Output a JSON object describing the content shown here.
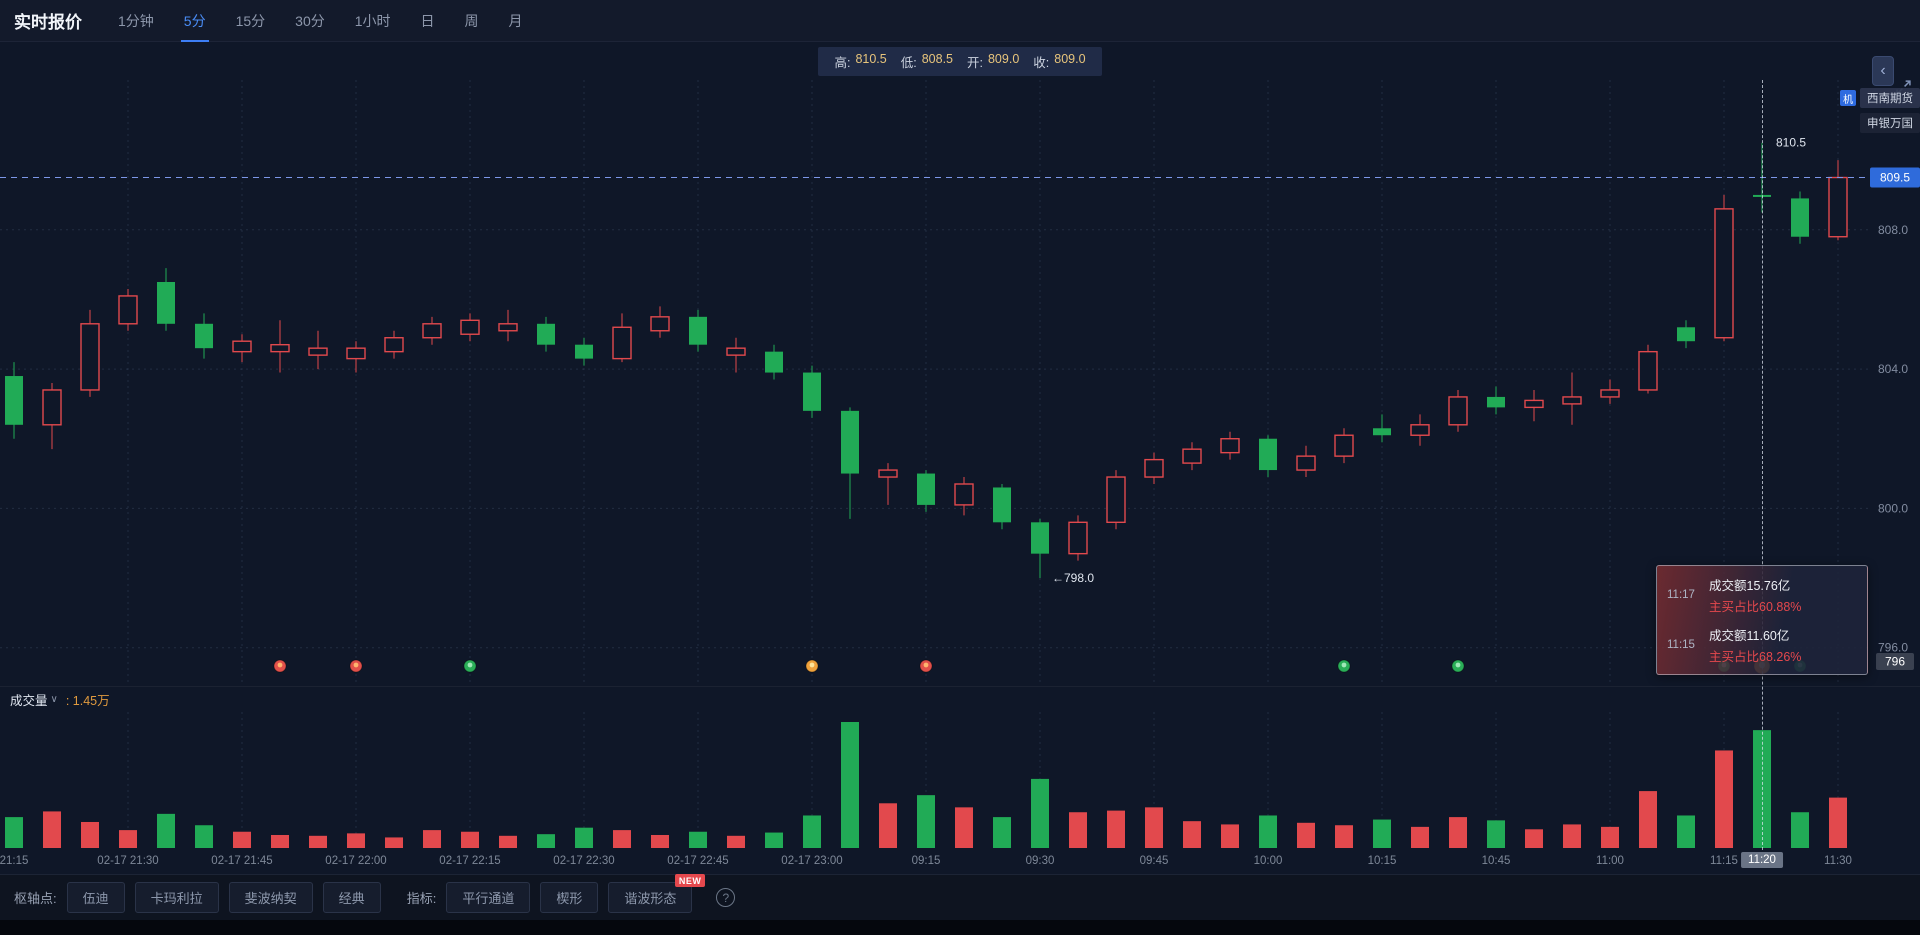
{
  "header": {
    "title": "实时报价",
    "tabs": [
      "1分钟",
      "5分",
      "15分",
      "30分",
      "1小时",
      "日",
      "周",
      "月"
    ],
    "active_tab": "5分"
  },
  "ohlc_bar": {
    "high_label": "高:",
    "high": "810.5",
    "low_label": "低:",
    "low": "808.5",
    "open_label": "开:",
    "open": "809.0",
    "close_label": "收:",
    "close": "809.0"
  },
  "side_controls": {
    "collapse_icon": "‹"
  },
  "overlay_tags": {
    "badge": "机",
    "item1": "西南期货",
    "item2": "申银万国"
  },
  "tooltip": {
    "rows": [
      {
        "time": "11:17",
        "amount": "成交额15.76亿",
        "ratio": "主买占比60.88%"
      },
      {
        "time": "11:15",
        "amount": "成交额11.60亿",
        "ratio": "主买占比68.26%"
      }
    ]
  },
  "volume_pane": {
    "label": "成交量",
    "caret": "∨",
    "value": ": 1.45万"
  },
  "footer": {
    "pivot_label": "枢轴点:",
    "pivot_buttons": [
      "伍迪",
      "卡玛利拉",
      "斐波纳契",
      "经典"
    ],
    "indicator_label": "指标:",
    "indicator_buttons": [
      "平行通道",
      "楔形",
      "谐波形态"
    ],
    "new_badge": "NEW",
    "help_icon": "?"
  },
  "chart_data": {
    "type": "candlestick",
    "timeframe": "5分",
    "convention": "red=up, green=down (CN futures)",
    "columns": [
      "time",
      "open",
      "high",
      "low",
      "close",
      "volume_wan"
    ],
    "candles": [
      [
        "21:15",
        803.8,
        804.2,
        802.0,
        802.4,
        0.38
      ],
      [
        "21:20",
        802.4,
        803.6,
        801.7,
        803.4,
        0.45
      ],
      [
        "21:25",
        803.4,
        805.7,
        803.2,
        805.3,
        0.32
      ],
      [
        "21:30",
        805.3,
        806.3,
        805.1,
        806.1,
        0.22
      ],
      [
        "21:35",
        806.5,
        806.9,
        805.1,
        805.3,
        0.42
      ],
      [
        "21:40",
        805.3,
        805.6,
        804.3,
        804.6,
        0.28
      ],
      [
        "21:45",
        804.5,
        805.0,
        804.2,
        804.8,
        0.2
      ],
      [
        "21:50",
        804.5,
        805.4,
        803.9,
        804.7,
        0.16
      ],
      [
        "21:55",
        804.4,
        805.1,
        804.0,
        804.6,
        0.15
      ],
      [
        "22:00",
        804.3,
        804.8,
        803.9,
        804.6,
        0.18
      ],
      [
        "22:05",
        804.5,
        805.1,
        804.3,
        804.9,
        0.13
      ],
      [
        "22:10",
        804.9,
        805.5,
        804.7,
        805.3,
        0.22
      ],
      [
        "22:15",
        805.0,
        805.6,
        804.8,
        805.4,
        0.2
      ],
      [
        "22:20",
        805.1,
        805.7,
        804.8,
        805.3,
        0.15
      ],
      [
        "22:25",
        805.3,
        805.5,
        804.5,
        804.7,
        0.17
      ],
      [
        "22:30",
        804.7,
        804.9,
        804.1,
        804.3,
        0.25
      ],
      [
        "22:35",
        804.3,
        805.6,
        804.2,
        805.2,
        0.22
      ],
      [
        "22:40",
        805.1,
        805.8,
        804.9,
        805.5,
        0.16
      ],
      [
        "22:45",
        805.5,
        805.7,
        804.5,
        804.7,
        0.2
      ],
      [
        "22:50",
        804.4,
        804.9,
        803.9,
        804.6,
        0.15
      ],
      [
        "22:55",
        804.5,
        804.7,
        803.7,
        803.9,
        0.19
      ],
      [
        "23:00",
        803.9,
        804.1,
        802.6,
        802.8,
        0.4
      ],
      [
        "09:05",
        802.8,
        802.9,
        799.7,
        801.0,
        1.55
      ],
      [
        "09:10",
        800.9,
        801.3,
        800.1,
        801.1,
        0.55
      ],
      [
        "09:15",
        801.0,
        801.1,
        799.9,
        800.1,
        0.65
      ],
      [
        "09:20",
        800.1,
        800.9,
        799.8,
        800.7,
        0.5
      ],
      [
        "09:25",
        800.6,
        800.7,
        799.4,
        799.6,
        0.38
      ],
      [
        "09:30",
        799.6,
        799.7,
        798.0,
        798.7,
        0.85
      ],
      [
        "09:35",
        798.7,
        799.8,
        798.5,
        799.6,
        0.44
      ],
      [
        "09:40",
        799.6,
        801.1,
        799.4,
        800.9,
        0.46
      ],
      [
        "09:45",
        800.9,
        801.6,
        800.7,
        801.4,
        0.5
      ],
      [
        "09:50",
        801.3,
        801.9,
        801.1,
        801.7,
        0.33
      ],
      [
        "09:55",
        801.6,
        802.2,
        801.4,
        802.0,
        0.29
      ],
      [
        "10:00",
        802.0,
        802.1,
        800.9,
        801.1,
        0.4
      ],
      [
        "10:05",
        801.1,
        801.8,
        800.9,
        801.5,
        0.31
      ],
      [
        "10:10",
        801.5,
        802.3,
        801.3,
        802.1,
        0.28
      ],
      [
        "10:15",
        802.3,
        802.7,
        801.9,
        802.1,
        0.35
      ],
      [
        "10:35",
        802.1,
        802.7,
        801.8,
        802.4,
        0.26
      ],
      [
        "10:40",
        802.4,
        803.4,
        802.2,
        803.2,
        0.38
      ],
      [
        "10:45",
        803.2,
        803.5,
        802.7,
        802.9,
        0.34
      ],
      [
        "10:50",
        802.9,
        803.4,
        802.5,
        803.1,
        0.23
      ],
      [
        "10:55",
        803.0,
        803.9,
        802.4,
        803.2,
        0.29
      ],
      [
        "11:00",
        803.2,
        803.7,
        803.0,
        803.4,
        0.26
      ],
      [
        "11:05",
        803.4,
        804.7,
        803.3,
        804.5,
        0.7
      ],
      [
        "11:10",
        805.2,
        805.4,
        804.6,
        804.8,
        0.4
      ],
      [
        "11:15",
        804.9,
        809.0,
        804.8,
        808.6,
        1.2
      ],
      [
        "11:20",
        809.0,
        810.5,
        808.5,
        809.0,
        1.45
      ],
      [
        "11:25",
        808.9,
        809.1,
        807.6,
        807.8,
        0.44
      ],
      [
        "11:30",
        807.8,
        810.0,
        807.7,
        809.5,
        0.62
      ]
    ],
    "x_labels": [
      {
        "i": 0,
        "t": "21:15"
      },
      {
        "i": 3,
        "t": "02-17 21:30"
      },
      {
        "i": 6,
        "t": "02-17 21:45"
      },
      {
        "i": 9,
        "t": "02-17 22:00"
      },
      {
        "i": 12,
        "t": "02-17 22:15"
      },
      {
        "i": 15,
        "t": "02-17 22:30"
      },
      {
        "i": 18,
        "t": "02-17 22:45"
      },
      {
        "i": 21,
        "t": "02-17 23:00"
      },
      {
        "i": 24,
        "t": "09:15"
      },
      {
        "i": 27,
        "t": "09:30"
      },
      {
        "i": 30,
        "t": "09:45"
      },
      {
        "i": 33,
        "t": "10:00"
      },
      {
        "i": 36,
        "t": "10:15"
      },
      {
        "i": 39,
        "t": "10:45"
      },
      {
        "i": 42,
        "t": "11:00"
      },
      {
        "i": 45,
        "t": "11:15"
      },
      {
        "i": 48,
        "t": "11:30"
      }
    ],
    "grid_prices": [
      {
        "price": 808.0,
        "label": "808.0"
      },
      {
        "price": 804.0,
        "label": "804.0"
      },
      {
        "price": 800.0,
        "label": "800.0"
      },
      {
        "price": 796.0,
        "label": "796.0"
      }
    ],
    "price_range": [
      794.9,
      812.3
    ],
    "current_price": {
      "value": 809.5,
      "label": "809.5"
    },
    "floor_badge": {
      "price": 796,
      "label": "796"
    },
    "annotations": {
      "high": {
        "index": 46,
        "price": 810.5,
        "text": "810.5"
      },
      "low": {
        "index": 27,
        "price": 798.0,
        "text": "←798.0"
      }
    },
    "crosshair": {
      "index": 46,
      "time_label": "11:20"
    },
    "markers": [
      {
        "i": 7,
        "color": "#e2504a",
        "center": "#ffb46e"
      },
      {
        "i": 9,
        "color": "#e2504a",
        "center": "#ffb46e"
      },
      {
        "i": 12,
        "color": "#2aae58",
        "center": "#9fe8b8"
      },
      {
        "i": 21,
        "color": "#f0a23c",
        "center": "#ffe49a"
      },
      {
        "i": 24,
        "color": "#e2504a",
        "center": "#ffb46e"
      },
      {
        "i": 35,
        "color": "#2aae58",
        "center": "#9fe8b8"
      },
      {
        "i": 38,
        "color": "#2aae58",
        "center": "#9fe8b8"
      },
      {
        "i": 45,
        "color": "#2aae58",
        "center": "#9fe8b8"
      },
      {
        "i": 46,
        "color": "#f0a23c",
        "center": "#ffe49a",
        "highlight": true
      },
      {
        "i": 47,
        "color": "#2aae58",
        "center": "#9fe8b8"
      }
    ],
    "volume_max_wan": 1.55,
    "colors": {
      "up": "#e2494d",
      "down": "#21ab56",
      "current_price_badge": "#2f6bdb",
      "accent": "#3d7ef5",
      "volume_value": "#e09a3e",
      "tooltip_red": "#e5484d"
    }
  }
}
